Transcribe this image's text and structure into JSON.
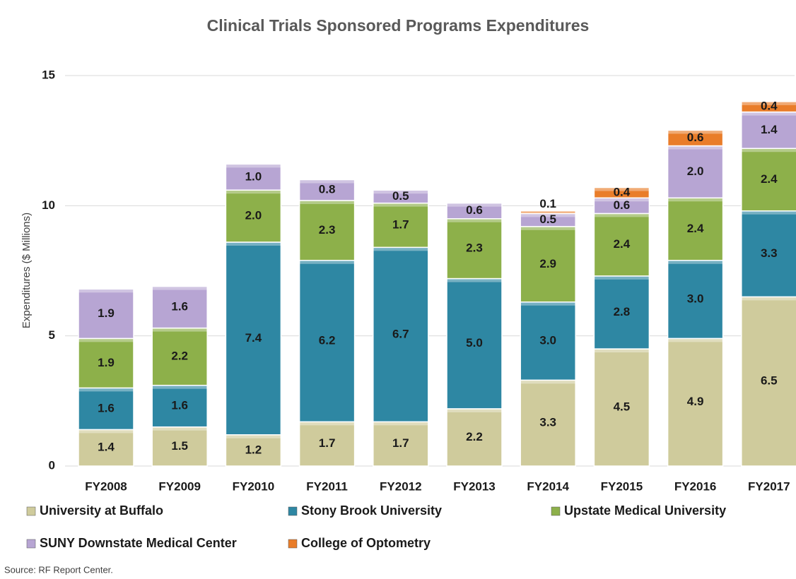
{
  "chart_data": {
    "type": "stacked_bar",
    "title": "Clinical Trials Sponsored Programs Expenditures",
    "y_label": "Expenditures ($ Millions)",
    "source": "Source:  RF Report Center.",
    "categories": [
      "FY2008",
      "FY2009",
      "FY2010",
      "FY2011",
      "FY2012",
      "FY2013",
      "FY2014",
      "FY2015",
      "FY2016",
      "FY2017"
    ],
    "series": [
      {
        "name": "University at Buffalo",
        "color": "#cfcb9c",
        "values": [
          1.4,
          1.5,
          1.2,
          1.7,
          1.7,
          2.2,
          3.3,
          4.5,
          4.9,
          6.5
        ],
        "value_labels": [
          "1.4",
          "1.5",
          "1.2",
          "1.7",
          "1.7",
          "2.2",
          "3.3",
          "4.5",
          "4.9",
          "6.5"
        ]
      },
      {
        "name": "Stony Brook University",
        "color": "#2e87a3",
        "values": [
          1.6,
          1.6,
          7.4,
          6.2,
          6.7,
          5.0,
          3.0,
          2.8,
          3.0,
          3.3
        ],
        "value_labels": [
          "1.6",
          "1.6",
          "7.4",
          "6.2",
          "6.7",
          "5.0",
          "3.0",
          "2.8",
          "3.0",
          "3.3"
        ]
      },
      {
        "name": "Upstate Medical University",
        "color": "#8db04a",
        "values": [
          1.9,
          2.2,
          2.0,
          2.3,
          1.7,
          2.3,
          2.9,
          2.4,
          2.4,
          2.4
        ],
        "value_labels": [
          "1.9",
          "2.2",
          "2.0",
          "2.3",
          "1.7",
          "2.3",
          "2.9",
          "2.4",
          "2.4",
          "2.4"
        ]
      },
      {
        "name": "SUNY Downstate Medical Center",
        "color": "#b7a5d3",
        "values": [
          1.9,
          1.6,
          1.0,
          0.8,
          0.5,
          0.6,
          0.5,
          0.6,
          2.0,
          1.4
        ],
        "value_labels": [
          "1.9",
          "1.6",
          "1.0",
          "0.8",
          "0.5",
          "0.6",
          "0.5",
          "0.6",
          "2.0",
          "1.4"
        ]
      },
      {
        "name": "College of Optometry",
        "color": "#e97d2a",
        "values": [
          null,
          null,
          null,
          null,
          null,
          null,
          0.1,
          0.4,
          0.6,
          0.4
        ],
        "value_labels": [
          null,
          null,
          null,
          null,
          null,
          null,
          "0.1",
          "0.4",
          "0.6",
          "0.4"
        ]
      }
    ],
    "ylim": [
      0,
      15
    ],
    "yticks": [
      0,
      5,
      10,
      15
    ],
    "grid": true
  }
}
